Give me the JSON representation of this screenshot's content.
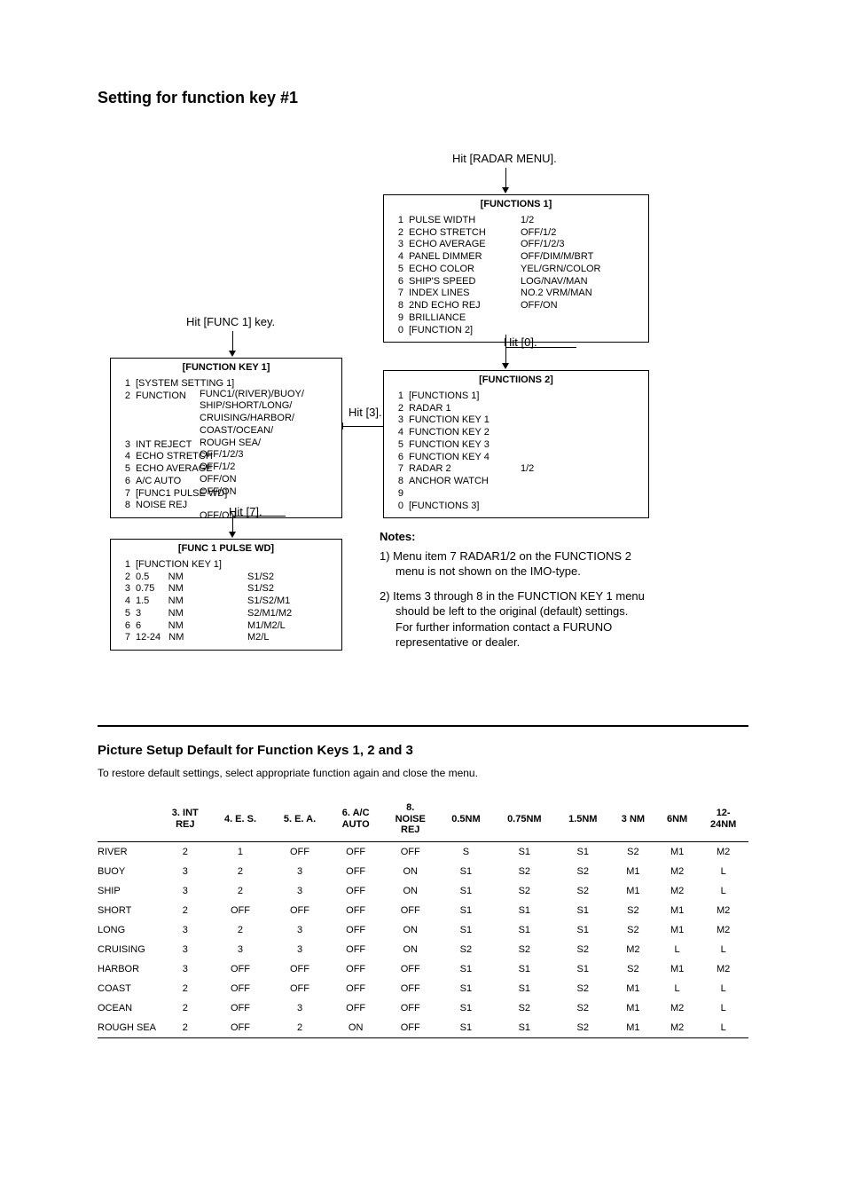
{
  "title": "Setting for function key #1",
  "labels": {
    "hit_radar_menu": "Hit [RADAR MENU].",
    "hit_func1": "Hit [FUNC 1] key.",
    "hit_0": "Hit [0].",
    "hit_3": "Hit [3].",
    "hit_7": "Hit [7]."
  },
  "box_functions1": {
    "title": "[FUNCTIONS 1]",
    "nums": "1\n2\n3\n4\n5\n6\n7\n8\n9\n0",
    "items": "PULSE WIDTH\nECHO STRETCH\nECHO AVERAGE\nPANEL DIMMER\nECHO COLOR\nSHIP'S SPEED\nINDEX LINES\n2ND ECHO REJ\nBRILLIANCE\n[FUNCTION 2]",
    "vals": "1/2\nOFF/1/2\nOFF/1/2/3\nOFF/DIM/M/BRT\nYEL/GRN/COLOR\nLOG/NAV/MAN\nNO.2 VRM/MAN\nOFF/ON"
  },
  "box_functions2": {
    "title": "[FUNCTIIONS 2]",
    "nums": "1\n2\n3\n4\n5\n6\n7\n8\n9\n0",
    "items": "[FUNCTIONS 1]\nRADAR 1\nFUNCTION KEY 1\nFUNCTION KEY 2\nFUNCTION KEY 3\nFUNCTION KEY 4\nRADAR 2\nANCHOR WATCH\n\n[FUNCTIONS 3]",
    "vals": "\n\n\n\n\n\n1/2"
  },
  "box_funckey1": {
    "title": "[FUNCTION KEY 1]",
    "nums": "1\n2\n\n\n\n3\n4\n5\n6\n7\n8",
    "items": "[SYSTEM SETTING 1]\nFUNCTION\n\n\n\nINT REJECT\nECHO STRETCH\nECHO AVERAGE\nA/C AUTO\n[FUNC1 PULSE WD]\nNOISE REJ",
    "vals": "\nFUNC1/(RIVER)/BUOY/\nSHIP/SHORT/LONG/\nCRUISING/HARBOR/\nCOAST/OCEAN/\nROUGH SEA/\nOFF/1/2/3\nOFF/1/2\nOFF/ON\nOFF/ON\n\nOFF/ON"
  },
  "box_pulsewd": {
    "title": "[FUNC 1 PULSE WD]",
    "nums": "1\n2\n3\n4\n5\n6\n7",
    "items": "[FUNCTION KEY 1]\n0.5       NM\n0.75     NM\n1.5       NM\n3          NM\n6          NM\n12-24   NM",
    "vals": "\nS1/S2\nS1/S2\nS1/S2/M1\nS2/M1/M2\nM1/M2/L\nM2/L"
  },
  "notes": {
    "title": "Notes:",
    "n1": "1) Menu item 7 RADAR1/2 on the FUNCTIONS 2 menu is not shown on the IMO-type.",
    "n2": "2) Items 3 through 8 in the FUNCTION KEY 1 menu should be left to the original (default) settings. For further information contact a FURUNO representative or dealer."
  },
  "subsection": {
    "title": "Picture Setup Default for Function Keys 1, 2 and 3",
    "desc": "To restore default settings, select appropriate function again and close the menu."
  },
  "table": {
    "headers": [
      "",
      "3. INT\nREJ",
      "4. E. S.",
      "5. E. A.",
      "6. A/C\nAUTO",
      "8.\nNOISE\nREJ",
      "0.5NM",
      "0.75NM",
      "1.5NM",
      "3 NM",
      "6NM",
      "12-\n24NM"
    ],
    "rows": [
      [
        "RIVER",
        "2",
        "1",
        "OFF",
        "OFF",
        "OFF",
        "S",
        "S1",
        "S1",
        "S2",
        "M1",
        "M2"
      ],
      [
        "BUOY",
        "3",
        "2",
        "3",
        "OFF",
        "ON",
        "S1",
        "S2",
        "S2",
        "M1",
        "M2",
        "L"
      ],
      [
        "SHIP",
        "3",
        "2",
        "3",
        "OFF",
        "ON",
        "S1",
        "S2",
        "S2",
        "M1",
        "M2",
        "L"
      ],
      [
        "SHORT",
        "2",
        "OFF",
        "OFF",
        "OFF",
        "OFF",
        "S1",
        "S1",
        "S1",
        "S2",
        "M1",
        "M2"
      ],
      [
        "LONG",
        "3",
        "2",
        "3",
        "OFF",
        "ON",
        "S1",
        "S1",
        "S1",
        "S2",
        "M1",
        "M2"
      ],
      [
        "CRUISING",
        "3",
        "3",
        "3",
        "OFF",
        "ON",
        "S2",
        "S2",
        "S2",
        "M2",
        "L",
        "L"
      ],
      [
        "HARBOR",
        "3",
        "OFF",
        "OFF",
        "OFF",
        "OFF",
        "S1",
        "S1",
        "S1",
        "S2",
        "M1",
        "M2"
      ],
      [
        "COAST",
        "2",
        "OFF",
        "OFF",
        "OFF",
        "OFF",
        "S1",
        "S1",
        "S2",
        "M1",
        "L",
        "L"
      ],
      [
        "OCEAN",
        "2",
        "OFF",
        "3",
        "OFF",
        "OFF",
        "S1",
        "S2",
        "S2",
        "M1",
        "M2",
        "L"
      ],
      [
        "ROUGH SEA",
        "2",
        "OFF",
        "2",
        "ON",
        "OFF",
        "S1",
        "S1",
        "S2",
        "M1",
        "M2",
        "L"
      ]
    ]
  }
}
